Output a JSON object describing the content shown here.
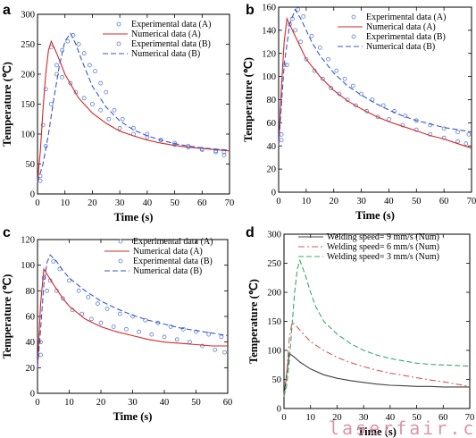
{
  "watermark": "laserfair.com",
  "chart_data": [
    {
      "type": "line",
      "panel": "a",
      "xlabel": "Time (s)",
      "ylabel": "Temperature (℃)",
      "xlim": [
        0,
        70
      ],
      "ylim": [
        0,
        300
      ],
      "xticks": [
        0,
        10,
        20,
        30,
        40,
        50,
        60,
        70
      ],
      "yticks": [
        0,
        50,
        100,
        150,
        200,
        250,
        300
      ],
      "legend_position": "top-right",
      "series": [
        {
          "name": "Experimental data (A)",
          "style": "circles",
          "color": "#5a7fd0",
          "x": [
            1,
            2,
            3,
            5,
            7,
            9,
            12,
            14,
            17,
            20,
            23,
            26,
            30,
            35,
            40,
            45,
            50,
            55,
            60,
            65,
            68
          ],
          "y": [
            30,
            115,
            175,
            245,
            215,
            195,
            185,
            170,
            160,
            150,
            140,
            125,
            110,
            100,
            95,
            90,
            85,
            80,
            75,
            72,
            70
          ]
        },
        {
          "name": "Numerical data (A)",
          "style": "solid",
          "color": "#d62728",
          "x": [
            0,
            1,
            2,
            3,
            4,
            5,
            7,
            10,
            15,
            20,
            25,
            30,
            35,
            40,
            45,
            50,
            55,
            60,
            65,
            70
          ],
          "y": [
            20,
            70,
            140,
            200,
            240,
            255,
            235,
            200,
            160,
            135,
            118,
            105,
            97,
            90,
            85,
            81,
            78,
            76,
            74,
            72
          ]
        },
        {
          "name": "Experimental data (B)",
          "style": "circles",
          "color": "#5a7fd0",
          "x": [
            1,
            3,
            5,
            7,
            9,
            11,
            13,
            15,
            17,
            19,
            21,
            23,
            25,
            28,
            31,
            35,
            40,
            45,
            50,
            55,
            60,
            65,
            68
          ],
          "y": [
            22,
            80,
            150,
            200,
            240,
            255,
            265,
            250,
            235,
            215,
            205,
            185,
            170,
            140,
            125,
            110,
            100,
            90,
            82,
            78,
            74,
            70,
            65
          ]
        },
        {
          "name": "Numerical data (B)",
          "style": "dashed",
          "color": "#3b57c6",
          "x": [
            0,
            2,
            4,
            6,
            8,
            10,
            12,
            14,
            16,
            18,
            20,
            25,
            30,
            35,
            40,
            45,
            50,
            55,
            60,
            65,
            70
          ],
          "y": [
            20,
            50,
            100,
            160,
            215,
            255,
            268,
            250,
            225,
            202,
            180,
            145,
            122,
            107,
            97,
            90,
            84,
            80,
            77,
            75,
            73
          ]
        }
      ]
    },
    {
      "type": "line",
      "panel": "b",
      "xlabel": "Time (s)",
      "ylabel": "Temperature (℃)",
      "xlim": [
        0,
        70
      ],
      "ylim": [
        0,
        160
      ],
      "xticks": [
        0,
        10,
        20,
        30,
        40,
        50,
        60,
        70
      ],
      "yticks": [
        0,
        20,
        40,
        60,
        80,
        100,
        120,
        140,
        160
      ],
      "legend_position": "top-right",
      "series": [
        {
          "name": "Experimental data (A)",
          "style": "circles",
          "color": "#5a7fd0",
          "x": [
            1,
            2,
            4,
            6,
            8,
            10,
            13,
            16,
            19,
            22,
            25,
            28,
            32,
            36,
            40,
            45,
            50,
            55,
            60,
            65,
            68
          ],
          "y": [
            50,
            110,
            145,
            140,
            130,
            115,
            105,
            98,
            90,
            85,
            80,
            75,
            70,
            65,
            63,
            58,
            54,
            50,
            47,
            44,
            42
          ]
        },
        {
          "name": "Numerical data (A)",
          "style": "solid",
          "color": "#d62728",
          "x": [
            0,
            1,
            2,
            3,
            4,
            6,
            8,
            10,
            15,
            20,
            25,
            30,
            35,
            40,
            45,
            50,
            55,
            60,
            65,
            70
          ],
          "y": [
            40,
            90,
            130,
            150,
            145,
            135,
            125,
            115,
            100,
            88,
            79,
            72,
            66,
            61,
            57,
            53,
            49,
            46,
            42,
            38
          ]
        },
        {
          "name": "Experimental data (B)",
          "style": "circles",
          "color": "#5a7fd0",
          "x": [
            1,
            3,
            5,
            7,
            9,
            12,
            15,
            18,
            21,
            24,
            27,
            30,
            34,
            38,
            42,
            46,
            50,
            55,
            60,
            65,
            69
          ],
          "y": [
            45,
            110,
            150,
            158,
            152,
            135,
            125,
            115,
            105,
            98,
            92,
            85,
            80,
            75,
            70,
            66,
            62,
            58,
            55,
            52,
            50
          ]
        },
        {
          "name": "Numerical data (B)",
          "style": "dashed",
          "color": "#3b57c6",
          "x": [
            0,
            2,
            4,
            6,
            8,
            10,
            12,
            15,
            20,
            25,
            30,
            35,
            40,
            45,
            50,
            55,
            60,
            65,
            70
          ],
          "y": [
            40,
            110,
            145,
            158,
            150,
            140,
            130,
            118,
            103,
            92,
            84,
            77,
            71,
            66,
            62,
            59,
            56,
            54,
            52
          ]
        }
      ]
    },
    {
      "type": "line",
      "panel": "c",
      "xlabel": "Time (s)",
      "ylabel": "Temperature (℃)",
      "xlim": [
        0,
        60
      ],
      "ylim": [
        0,
        120
      ],
      "xticks": [
        0,
        10,
        20,
        30,
        40,
        50,
        60
      ],
      "yticks": [
        0,
        20,
        40,
        60,
        80,
        100,
        120
      ],
      "legend_position": "top-right",
      "series": [
        {
          "name": "Experimental data (A)",
          "style": "circles",
          "color": "#5a7fd0",
          "x": [
            1,
            2,
            4,
            6,
            8,
            11,
            14,
            17,
            20,
            24,
            28,
            32,
            36,
            40,
            44,
            48,
            52,
            56,
            59
          ],
          "y": [
            40,
            90,
            88,
            80,
            74,
            65,
            62,
            58,
            55,
            52,
            50,
            48,
            46,
            44,
            42,
            40,
            37,
            34,
            32
          ]
        },
        {
          "name": "Numerical data (A)",
          "style": "solid",
          "color": "#d62728",
          "x": [
            0,
            1,
            2,
            3,
            5,
            8,
            10,
            15,
            20,
            25,
            30,
            35,
            40,
            45,
            50,
            55,
            60
          ],
          "y": [
            20,
            70,
            97,
            93,
            85,
            74,
            68,
            58,
            52,
            48,
            45,
            42,
            40,
            39,
            38,
            37,
            37
          ]
        },
        {
          "name": "Experimental data (B)",
          "style": "circles",
          "color": "#5a7fd0",
          "x": [
            1,
            3,
            5,
            7,
            10,
            13,
            16,
            19,
            22,
            26,
            30,
            34,
            38,
            42,
            46,
            50,
            54,
            58
          ],
          "y": [
            30,
            80,
            103,
            97,
            88,
            80,
            75,
            70,
            66,
            62,
            60,
            57,
            55,
            52,
            50,
            48,
            46,
            44
          ]
        },
        {
          "name": "Numerical data (B)",
          "style": "dashed",
          "color": "#3b57c6",
          "x": [
            0,
            1,
            2,
            3,
            4,
            6,
            8,
            10,
            15,
            20,
            25,
            30,
            35,
            40,
            45,
            50,
            55,
            60
          ],
          "y": [
            20,
            50,
            85,
            102,
            108,
            103,
            96,
            90,
            80,
            72,
            66,
            61,
            57,
            54,
            51,
            49,
            47,
            45
          ]
        }
      ]
    },
    {
      "type": "line",
      "panel": "d",
      "xlabel": "Time (s)",
      "ylabel": "Temperature (℃)",
      "xlim": [
        0,
        70
      ],
      "ylim": [
        0,
        300
      ],
      "xticks": [
        0,
        10,
        20,
        30,
        40,
        50,
        60,
        70
      ],
      "yticks": [
        0,
        50,
        100,
        150,
        200,
        250,
        300
      ],
      "legend_position": "top-right",
      "series": [
        {
          "name": "Welding speed= 9 mm/s (Num)",
          "style": "solid",
          "color": "#404040",
          "x": [
            0,
            1,
            2,
            4,
            6,
            10,
            15,
            20,
            25,
            30,
            35,
            40,
            45,
            50,
            55,
            60,
            65,
            70
          ],
          "y": [
            20,
            60,
            95,
            88,
            80,
            68,
            58,
            52,
            48,
            45,
            42,
            40,
            39,
            38,
            38,
            37,
            37,
            37
          ]
        },
        {
          "name": "Welding speed= 6 mm/s (Num)",
          "style": "dashdot",
          "color": "#d65a5a",
          "x": [
            0,
            1,
            2,
            3,
            4,
            6,
            8,
            10,
            15,
            20,
            25,
            30,
            35,
            40,
            45,
            50,
            55,
            60,
            65,
            70
          ],
          "y": [
            20,
            60,
            120,
            148,
            145,
            135,
            125,
            115,
            100,
            88,
            79,
            72,
            66,
            61,
            57,
            53,
            49,
            46,
            42,
            38
          ]
        },
        {
          "name": "Welding speed= 3 mm/s (Num)",
          "style": "dashed",
          "color": "#3aa86b",
          "x": [
            0,
            1,
            2,
            3,
            4,
            5,
            6,
            8,
            10,
            12,
            15,
            20,
            25,
            30,
            35,
            40,
            45,
            50,
            55,
            60,
            65,
            70
          ],
          "y": [
            20,
            40,
            80,
            140,
            200,
            240,
            255,
            230,
            200,
            175,
            150,
            128,
            112,
            100,
            92,
            86,
            82,
            78,
            76,
            75,
            74,
            73
          ]
        }
      ]
    }
  ]
}
